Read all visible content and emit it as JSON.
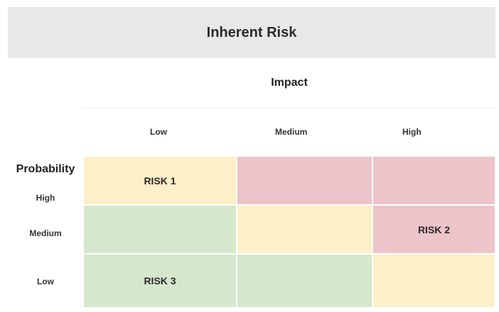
{
  "title": "Inherent Risk",
  "impact": {
    "label": "Impact",
    "columns": [
      "Low",
      "Medium",
      "High"
    ]
  },
  "probability": {
    "label": "Probability",
    "rows": [
      "High",
      "Medium",
      "Low"
    ]
  },
  "colors": {
    "low_risk": "#d5e8cd",
    "medium_risk": "#fdefc7",
    "high_risk": "#ecc4ca",
    "header_bg": "#e8e8e8"
  },
  "matrix": {
    "row_high": {
      "col_low": {
        "label": "RISK 1",
        "level": "medium"
      },
      "col_medium": {
        "label": "",
        "level": "high"
      },
      "col_high": {
        "label": "",
        "level": "high"
      }
    },
    "row_medium": {
      "col_low": {
        "label": "",
        "level": "low"
      },
      "col_medium": {
        "label": "",
        "level": "medium"
      },
      "col_high": {
        "label": "RISK 2",
        "level": "high"
      }
    },
    "row_low": {
      "col_low": {
        "label": "RISK 3",
        "level": "low"
      },
      "col_medium": {
        "label": "",
        "level": "low"
      },
      "col_high": {
        "label": "",
        "level": "medium"
      }
    }
  }
}
